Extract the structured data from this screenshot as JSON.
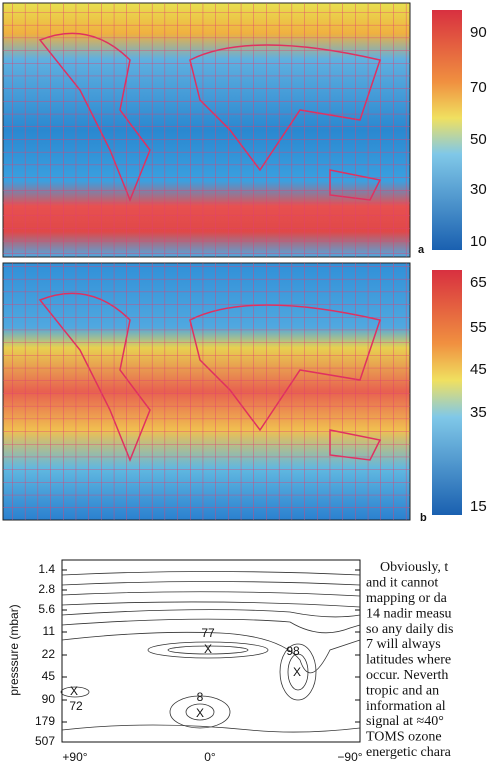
{
  "figure_a": {
    "colorbar_labels": [
      "90",
      "70",
      "50",
      "30",
      "10"
    ],
    "panel_label": "a"
  },
  "figure_b": {
    "colorbar_labels": [
      "65",
      "55",
      "45",
      "35",
      "15"
    ],
    "panel_label": "b"
  },
  "contour_plot": {
    "y_axis_label": "presssure (mbar)",
    "y_tick_labels": [
      "1.4",
      "2.8",
      "5.6",
      "11",
      "22",
      "45",
      "90",
      "179",
      "507"
    ],
    "x_tick_labels": [
      "+90°",
      "0°",
      "−90°"
    ],
    "annotations": [
      "77",
      "X",
      "98",
      "X",
      "8",
      "X",
      "X",
      "72"
    ]
  },
  "text": {
    "lines": [
      "Obviously, t",
      "and it cannot",
      "mapping or da",
      "14 nadir measu",
      "so any daily dis",
      "7 will always",
      "latitudes where",
      "occur. Neverth",
      "tropic and an",
      "information al",
      "signal at ≈40°",
      "TOMS ozone",
      "energetic chara"
    ]
  }
}
